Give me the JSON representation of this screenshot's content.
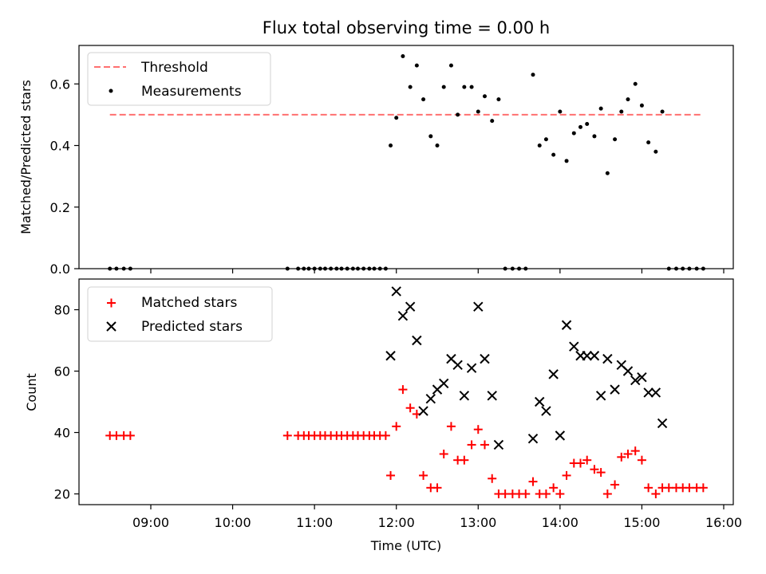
{
  "title": "Flux total observing time = 0.00 h",
  "xlabel": "Time (UTC)",
  "x_ticks": [
    "09:00",
    "10:00",
    "11:00",
    "12:00",
    "13:00",
    "14:00",
    "15:00",
    "16:00"
  ],
  "chart_data": [
    {
      "type": "scatter",
      "ylabel": "Matched/Predicted stars",
      "ylim": [
        0,
        0.725
      ],
      "yticks": [
        "0.0",
        "0.2",
        "0.4",
        "0.6"
      ],
      "legend_position": "top-left",
      "threshold": {
        "name": "Threshold",
        "value": 0.5,
        "x_range": [
          8.5,
          15.75
        ],
        "color": "#ff7070"
      },
      "series": [
        {
          "name": "Measurements",
          "color": "#000000",
          "points": [
            [
              8.5,
              0
            ],
            [
              8.58,
              0
            ],
            [
              8.67,
              0
            ],
            [
              8.75,
              0
            ],
            [
              10.67,
              0
            ],
            [
              10.8,
              0
            ],
            [
              10.87,
              0
            ],
            [
              10.93,
              0
            ],
            [
              11.0,
              0
            ],
            [
              11.07,
              0
            ],
            [
              11.13,
              0
            ],
            [
              11.2,
              0
            ],
            [
              11.27,
              0
            ],
            [
              11.33,
              0
            ],
            [
              11.4,
              0
            ],
            [
              11.47,
              0
            ],
            [
              11.53,
              0
            ],
            [
              11.6,
              0
            ],
            [
              11.67,
              0
            ],
            [
              11.73,
              0
            ],
            [
              11.8,
              0
            ],
            [
              11.87,
              0
            ],
            [
              11.93,
              0.4
            ],
            [
              12.0,
              0.49
            ],
            [
              12.08,
              0.69
            ],
            [
              12.17,
              0.59
            ],
            [
              12.25,
              0.66
            ],
            [
              12.33,
              0.55
            ],
            [
              12.42,
              0.43
            ],
            [
              12.5,
              0.4
            ],
            [
              12.58,
              0.59
            ],
            [
              12.67,
              0.66
            ],
            [
              12.75,
              0.5
            ],
            [
              12.83,
              0.59
            ],
            [
              12.92,
              0.59
            ],
            [
              13.0,
              0.51
            ],
            [
              13.08,
              0.56
            ],
            [
              13.17,
              0.48
            ],
            [
              13.25,
              0.55
            ],
            [
              13.33,
              0
            ],
            [
              13.42,
              0
            ],
            [
              13.5,
              0
            ],
            [
              13.58,
              0
            ],
            [
              13.67,
              0.63
            ],
            [
              13.75,
              0.4
            ],
            [
              13.83,
              0.42
            ],
            [
              13.92,
              0.37
            ],
            [
              14.0,
              0.51
            ],
            [
              14.08,
              0.35
            ],
            [
              14.17,
              0.44
            ],
            [
              14.25,
              0.46
            ],
            [
              14.33,
              0.47
            ],
            [
              14.42,
              0.43
            ],
            [
              14.5,
              0.52
            ],
            [
              14.58,
              0.31
            ],
            [
              14.67,
              0.42
            ],
            [
              14.75,
              0.51
            ],
            [
              14.83,
              0.55
            ],
            [
              14.92,
              0.6
            ],
            [
              15.0,
              0.53
            ],
            [
              15.08,
              0.41
            ],
            [
              15.17,
              0.38
            ],
            [
              15.25,
              0.51
            ],
            [
              15.33,
              0
            ],
            [
              15.42,
              0
            ],
            [
              15.5,
              0
            ],
            [
              15.58,
              0
            ],
            [
              15.67,
              0
            ],
            [
              15.75,
              0
            ]
          ]
        }
      ]
    },
    {
      "type": "scatter",
      "ylabel": "Count",
      "ylim": [
        16.5,
        90
      ],
      "yticks": [
        "20",
        "40",
        "60",
        "80"
      ],
      "legend_position": "top-left",
      "series": [
        {
          "name": "Matched stars",
          "marker": "plus",
          "color": "#ff0000",
          "points": [
            [
              8.5,
              39
            ],
            [
              8.58,
              39
            ],
            [
              8.67,
              39
            ],
            [
              8.75,
              39
            ],
            [
              10.67,
              39
            ],
            [
              10.8,
              39
            ],
            [
              10.87,
              39
            ],
            [
              10.93,
              39
            ],
            [
              11.0,
              39
            ],
            [
              11.07,
              39
            ],
            [
              11.13,
              39
            ],
            [
              11.2,
              39
            ],
            [
              11.27,
              39
            ],
            [
              11.33,
              39
            ],
            [
              11.4,
              39
            ],
            [
              11.47,
              39
            ],
            [
              11.53,
              39
            ],
            [
              11.6,
              39
            ],
            [
              11.67,
              39
            ],
            [
              11.73,
              39
            ],
            [
              11.8,
              39
            ],
            [
              11.87,
              39
            ],
            [
              11.93,
              26
            ],
            [
              12.0,
              42
            ],
            [
              12.08,
              54
            ],
            [
              12.17,
              48
            ],
            [
              12.25,
              46
            ],
            [
              12.33,
              26
            ],
            [
              12.42,
              22
            ],
            [
              12.5,
              22
            ],
            [
              12.58,
              33
            ],
            [
              12.67,
              42
            ],
            [
              12.75,
              31
            ],
            [
              12.83,
              31
            ],
            [
              12.92,
              36
            ],
            [
              13.0,
              41
            ],
            [
              13.08,
              36
            ],
            [
              13.17,
              25
            ],
            [
              13.25,
              20
            ],
            [
              13.33,
              20
            ],
            [
              13.42,
              20
            ],
            [
              13.5,
              20
            ],
            [
              13.58,
              20
            ],
            [
              13.67,
              24
            ],
            [
              13.75,
              20
            ],
            [
              13.83,
              20
            ],
            [
              13.92,
              22
            ],
            [
              14.0,
              20
            ],
            [
              14.08,
              26
            ],
            [
              14.17,
              30
            ],
            [
              14.25,
              30
            ],
            [
              14.33,
              31
            ],
            [
              14.42,
              28
            ],
            [
              14.5,
              27
            ],
            [
              14.58,
              20
            ],
            [
              14.67,
              23
            ],
            [
              14.75,
              32
            ],
            [
              14.83,
              33
            ],
            [
              14.92,
              34
            ],
            [
              15.0,
              31
            ],
            [
              15.08,
              22
            ],
            [
              15.17,
              20
            ],
            [
              15.25,
              22
            ],
            [
              15.33,
              22
            ],
            [
              15.42,
              22
            ],
            [
              15.5,
              22
            ],
            [
              15.58,
              22
            ],
            [
              15.67,
              22
            ],
            [
              15.75,
              22
            ]
          ]
        },
        {
          "name": "Predicted stars",
          "marker": "x",
          "color": "#000000",
          "points": [
            [
              11.93,
              65
            ],
            [
              12.0,
              86
            ],
            [
              12.08,
              78
            ],
            [
              12.17,
              81
            ],
            [
              12.25,
              70
            ],
            [
              12.33,
              47
            ],
            [
              12.42,
              51
            ],
            [
              12.5,
              54
            ],
            [
              12.58,
              56
            ],
            [
              12.67,
              64
            ],
            [
              12.75,
              62
            ],
            [
              12.83,
              52
            ],
            [
              12.92,
              61
            ],
            [
              13.0,
              81
            ],
            [
              13.08,
              64
            ],
            [
              13.17,
              52
            ],
            [
              13.25,
              36
            ],
            [
              13.67,
              38
            ],
            [
              13.75,
              50
            ],
            [
              13.83,
              47
            ],
            [
              13.92,
              59
            ],
            [
              14.0,
              39
            ],
            [
              14.08,
              75
            ],
            [
              14.17,
              68
            ],
            [
              14.25,
              65
            ],
            [
              14.33,
              65
            ],
            [
              14.42,
              65
            ],
            [
              14.5,
              52
            ],
            [
              14.58,
              64
            ],
            [
              14.67,
              54
            ],
            [
              14.75,
              62
            ],
            [
              14.83,
              60
            ],
            [
              14.92,
              57
            ],
            [
              15.0,
              58
            ],
            [
              15.08,
              53
            ],
            [
              15.17,
              53
            ],
            [
              15.25,
              43
            ]
          ]
        }
      ]
    }
  ]
}
